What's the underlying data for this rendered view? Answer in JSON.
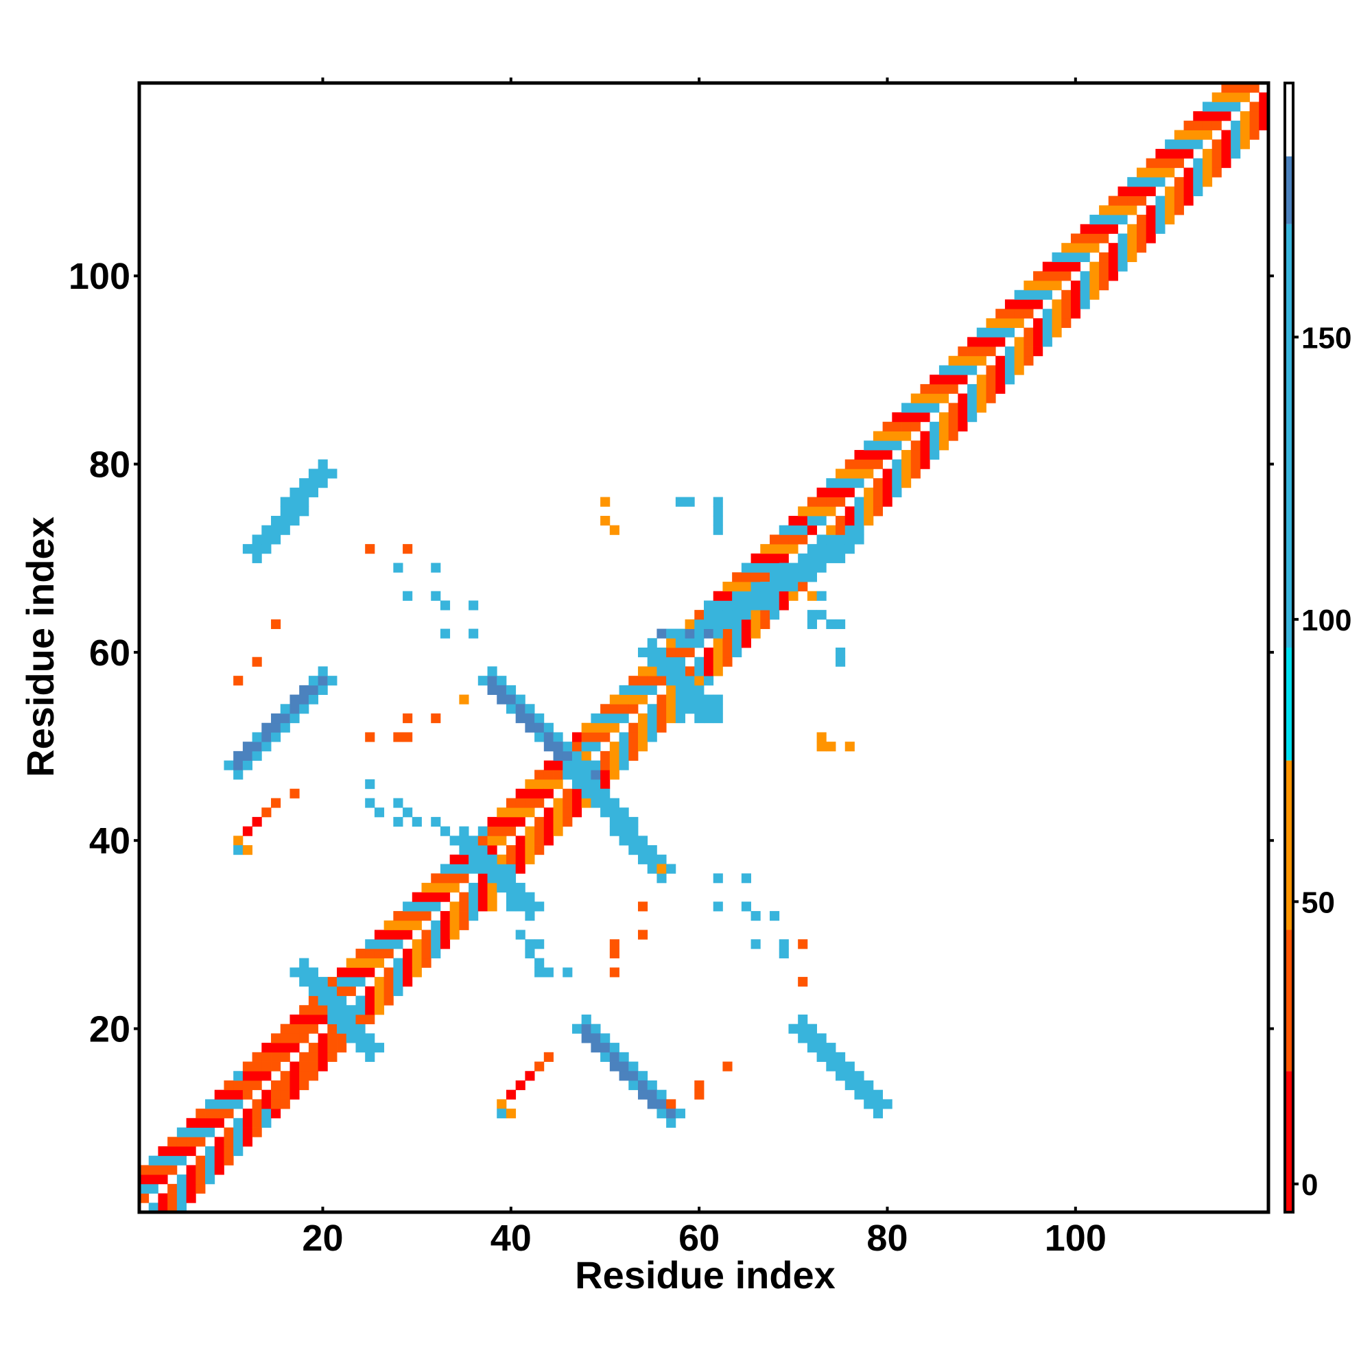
{
  "chart_data": {
    "type": "heatmap",
    "title": "",
    "xlabel": "Residue index",
    "ylabel": "Residue index",
    "xlim": [
      1,
      120
    ],
    "ylim": [
      1,
      120
    ],
    "x_ticks": [
      20,
      40,
      60,
      80,
      100
    ],
    "y_ticks": [
      20,
      40,
      60,
      80,
      100
    ],
    "grid": false,
    "colorbar": {
      "range": [
        -5,
        195
      ],
      "ticks": [
        0,
        50,
        100,
        150
      ],
      "bands": [
        {
          "from": -5,
          "to": 20,
          "color": "#ff0000"
        },
        {
          "from": 20,
          "to": 45,
          "color": "#ff5500"
        },
        {
          "from": 45,
          "to": 75,
          "color": "#ff9400"
        },
        {
          "from": 75,
          "to": 95,
          "color": "#00dff0"
        },
        {
          "from": 95,
          "to": 170,
          "color": "#38b4dc"
        },
        {
          "from": 170,
          "to": 182,
          "color": "#4b82be"
        },
        {
          "from": 182,
          "to": 195,
          "color": "#ffffff"
        }
      ]
    },
    "diagonal_segments": [
      {
        "from": 1,
        "to": 12,
        "values": [
          95,
          10,
          40
        ]
      },
      {
        "from": 12,
        "to": 22,
        "values": [
          5,
          40,
          25
        ]
      },
      {
        "from": 22,
        "to": 38,
        "values": [
          40,
          95,
          5,
          60
        ]
      },
      {
        "from": 38,
        "to": 48,
        "values": [
          5,
          60,
          35
        ]
      },
      {
        "from": 48,
        "to": 58,
        "values": [
          40,
          60,
          95
        ]
      },
      {
        "from": 58,
        "to": 72,
        "values": [
          40,
          95,
          5,
          60
        ]
      },
      {
        "from": 72,
        "to": 120,
        "values": [
          40,
          10,
          95,
          60
        ]
      }
    ],
    "patches": [
      {
        "x": [
          13,
          20
        ],
        "y": [
          71,
          79
        ],
        "value": 160
      },
      {
        "x": [
          11,
          20
        ],
        "y": [
          48,
          57
        ],
        "value": 170
      },
      {
        "x": [
          38,
          48
        ],
        "y": [
          47,
          57
        ],
        "value": 170
      },
      {
        "x": [
          47,
          56
        ],
        "y": [
          37,
          47
        ],
        "value": 160
      },
      {
        "x": [
          48,
          57
        ],
        "y": [
          11,
          20
        ],
        "value": 170
      },
      {
        "x": [
          71,
          79
        ],
        "y": [
          12,
          20
        ],
        "value": 160
      },
      {
        "x": [
          18,
          25
        ],
        "y": [
          18,
          26
        ],
        "value": 160
      },
      {
        "x": [
          35,
          42
        ],
        "y": [
          33,
          40
        ],
        "value": 120
      },
      {
        "x": [
          55,
          61
        ],
        "y": [
          54,
          60
        ],
        "value": 120
      },
      {
        "x": [
          60,
          76
        ],
        "y": [
          62,
          72
        ],
        "value": 120
      }
    ],
    "points": [
      {
        "x": 50,
        "y": 76,
        "value": 60
      },
      {
        "x": 50,
        "y": 74,
        "value": 65
      },
      {
        "x": 51,
        "y": 73,
        "value": 65
      },
      {
        "x": 25,
        "y": 71,
        "value": 35
      },
      {
        "x": 29,
        "y": 71,
        "value": 40
      },
      {
        "x": 28,
        "y": 69,
        "value": 95
      },
      {
        "x": 32,
        "y": 69,
        "value": 95
      },
      {
        "x": 29,
        "y": 66,
        "value": 120
      },
      {
        "x": 32,
        "y": 66,
        "value": 130
      },
      {
        "x": 33,
        "y": 65,
        "value": 160
      },
      {
        "x": 36,
        "y": 65,
        "value": 120
      },
      {
        "x": 33,
        "y": 62,
        "value": 130
      },
      {
        "x": 36,
        "y": 62,
        "value": 120
      },
      {
        "x": 15,
        "y": 63,
        "value": 35
      },
      {
        "x": 13,
        "y": 59,
        "value": 30
      },
      {
        "x": 11,
        "y": 57,
        "value": 40
      },
      {
        "x": 35,
        "y": 55,
        "value": 60
      },
      {
        "x": 29,
        "y": 53,
        "value": 40
      },
      {
        "x": 32,
        "y": 53,
        "value": 40
      },
      {
        "x": 25,
        "y": 51,
        "value": 40
      },
      {
        "x": 28,
        "y": 51,
        "value": 40
      },
      {
        "x": 29,
        "y": 51,
        "value": 40
      },
      {
        "x": 17,
        "y": 45,
        "value": 40
      },
      {
        "x": 15,
        "y": 44,
        "value": 30
      },
      {
        "x": 14,
        "y": 43,
        "value": 30
      },
      {
        "x": 13,
        "y": 42,
        "value": 10
      },
      {
        "x": 12,
        "y": 41,
        "value": 10
      },
      {
        "x": 11,
        "y": 40,
        "value": 60
      },
      {
        "x": 11,
        "y": 39,
        "value": 110
      },
      {
        "x": 12,
        "y": 39,
        "value": 65
      },
      {
        "x": 25,
        "y": 46,
        "value": 120
      },
      {
        "x": 25,
        "y": 44,
        "value": 120
      },
      {
        "x": 26,
        "y": 43,
        "value": 120
      },
      {
        "x": 28,
        "y": 44,
        "value": 160
      },
      {
        "x": 29,
        "y": 43,
        "value": 160
      },
      {
        "x": 28,
        "y": 42,
        "value": 120
      },
      {
        "x": 30,
        "y": 42,
        "value": 120
      },
      {
        "x": 32,
        "y": 42,
        "value": 120
      },
      {
        "x": 33,
        "y": 41,
        "value": 150
      },
      {
        "x": 34,
        "y": 40,
        "value": 160
      },
      {
        "x": 38,
        "y": 33,
        "value": 60
      },
      {
        "x": 40,
        "y": 33,
        "value": 140
      },
      {
        "x": 41,
        "y": 34,
        "value": 120
      },
      {
        "x": 41,
        "y": 30,
        "value": 120
      },
      {
        "x": 42,
        "y": 29,
        "value": 120
      },
      {
        "x": 43,
        "y": 29,
        "value": 160
      },
      {
        "x": 42,
        "y": 28,
        "value": 120
      },
      {
        "x": 43,
        "y": 27,
        "value": 120
      },
      {
        "x": 43,
        "y": 26,
        "value": 120
      },
      {
        "x": 44,
        "y": 26,
        "value": 120
      },
      {
        "x": 46,
        "y": 26,
        "value": 120
      },
      {
        "x": 54,
        "y": 33,
        "value": 35
      },
      {
        "x": 54,
        "y": 30,
        "value": 35
      },
      {
        "x": 51,
        "y": 29,
        "value": 35
      },
      {
        "x": 51,
        "y": 28,
        "value": 35
      },
      {
        "x": 51,
        "y": 26,
        "value": 30
      },
      {
        "x": 56,
        "y": 37,
        "value": 60
      },
      {
        "x": 62,
        "y": 36,
        "value": 120
      },
      {
        "x": 65,
        "y": 36,
        "value": 120
      },
      {
        "x": 62,
        "y": 33,
        "value": 120
      },
      {
        "x": 65,
        "y": 33,
        "value": 120
      },
      {
        "x": 66,
        "y": 32,
        "value": 160
      },
      {
        "x": 68,
        "y": 32,
        "value": 120
      },
      {
        "x": 66,
        "y": 29,
        "value": 120
      },
      {
        "x": 69,
        "y": 29,
        "value": 120
      },
      {
        "x": 69,
        "y": 28,
        "value": 120
      },
      {
        "x": 71,
        "y": 29,
        "value": 35
      },
      {
        "x": 71,
        "y": 25,
        "value": 30
      },
      {
        "x": 60,
        "y": 14,
        "value": 35
      },
      {
        "x": 60,
        "y": 13,
        "value": 35
      },
      {
        "x": 57,
        "y": 12,
        "value": 35
      },
      {
        "x": 63,
        "y": 16,
        "value": 35
      },
      {
        "x": 44,
        "y": 17,
        "value": 30
      },
      {
        "x": 43,
        "y": 16,
        "value": 30
      },
      {
        "x": 42,
        "y": 15,
        "value": 10
      },
      {
        "x": 41,
        "y": 14,
        "value": 10
      },
      {
        "x": 40,
        "y": 13,
        "value": 10
      },
      {
        "x": 39,
        "y": 12,
        "value": 60
      },
      {
        "x": 39,
        "y": 11,
        "value": 100
      },
      {
        "x": 40,
        "y": 11,
        "value": 65
      },
      {
        "x": 73,
        "y": 51,
        "value": 60
      },
      {
        "x": 73,
        "y": 50,
        "value": 65
      },
      {
        "x": 74,
        "y": 50,
        "value": 65
      },
      {
        "x": 76,
        "y": 50,
        "value": 60
      },
      {
        "x": 58,
        "y": 76,
        "value": 120
      },
      {
        "x": 59,
        "y": 76,
        "value": 120
      },
      {
        "x": 62,
        "y": 76,
        "value": 160
      },
      {
        "x": 62,
        "y": 75,
        "value": 130
      },
      {
        "x": 62,
        "y": 74,
        "value": 120
      },
      {
        "x": 62,
        "y": 73,
        "value": 120
      },
      {
        "x": 61,
        "y": 62,
        "value": 170
      },
      {
        "x": 59,
        "y": 62,
        "value": 170
      },
      {
        "x": 58,
        "y": 62,
        "value": 150
      },
      {
        "x": 56,
        "y": 62,
        "value": 170
      },
      {
        "x": 57,
        "y": 62,
        "value": 150
      },
      {
        "x": 56,
        "y": 59,
        "value": 160
      },
      {
        "x": 57,
        "y": 59,
        "value": 120
      },
      {
        "x": 58,
        "y": 59,
        "value": 120
      },
      {
        "x": 62,
        "y": 55,
        "value": 160
      },
      {
        "x": 62,
        "y": 53,
        "value": 160
      },
      {
        "x": 60,
        "y": 53,
        "value": 120
      },
      {
        "x": 58,
        "y": 53,
        "value": 120
      },
      {
        "x": 59,
        "y": 54,
        "value": 120
      },
      {
        "x": 72,
        "y": 64,
        "value": 160
      },
      {
        "x": 73,
        "y": 64,
        "value": 160
      },
      {
        "x": 74,
        "y": 63,
        "value": 120
      },
      {
        "x": 75,
        "y": 63,
        "value": 120
      },
      {
        "x": 72,
        "y": 63,
        "value": 120
      },
      {
        "x": 75,
        "y": 60,
        "value": 130
      },
      {
        "x": 75,
        "y": 59,
        "value": 120
      },
      {
        "x": 72,
        "y": 66,
        "value": 65
      },
      {
        "x": 73,
        "y": 66,
        "value": 120
      }
    ]
  }
}
